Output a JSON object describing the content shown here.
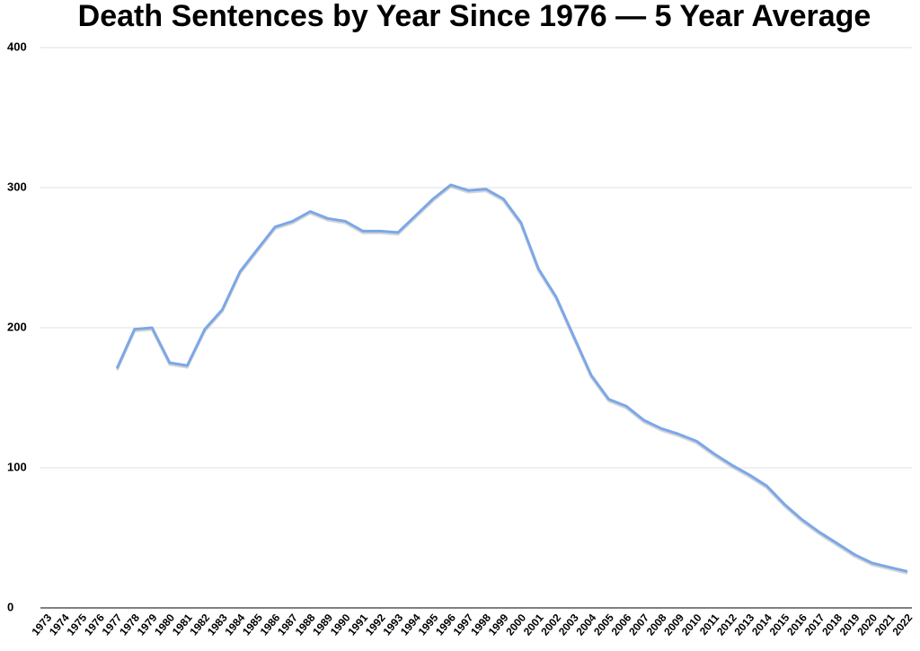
{
  "chart_data": {
    "type": "line",
    "title": "Death Sentences by Year Since 1976 — 5 Year Average",
    "categories": [
      "1973",
      "1974",
      "1975",
      "1976",
      "1977",
      "1978",
      "1979",
      "1980",
      "1981",
      "1982",
      "1983",
      "1984",
      "1985",
      "1986",
      "1987",
      "1988",
      "1989",
      "1990",
      "1991",
      "1992",
      "1993",
      "1994",
      "1995",
      "1996",
      "1997",
      "1998",
      "1999",
      "2000",
      "2001",
      "2002",
      "2003",
      "2004",
      "2005",
      "2006",
      "2007",
      "2008",
      "2009",
      "2010",
      "2011",
      "2012",
      "2013",
      "2014",
      "2015",
      "2016",
      "2017",
      "2018",
      "2019",
      "2020",
      "2021",
      "2022"
    ],
    "values": [
      null,
      null,
      null,
      null,
      171,
      199,
      200,
      175,
      173,
      199,
      213,
      240,
      256,
      272,
      276,
      283,
      278,
      276,
      269,
      269,
      268,
      280,
      292,
      302,
      298,
      299,
      292,
      275,
      242,
      222,
      194,
      166,
      149,
      144,
      134,
      128,
      124,
      119,
      110,
      102,
      95,
      87,
      74,
      63,
      54,
      46,
      38,
      32,
      29,
      26
    ],
    "color": "#7ba7e8",
    "ylim": [
      0,
      400
    ],
    "yticks": [
      0,
      100,
      200,
      300,
      400
    ],
    "grid": true
  }
}
